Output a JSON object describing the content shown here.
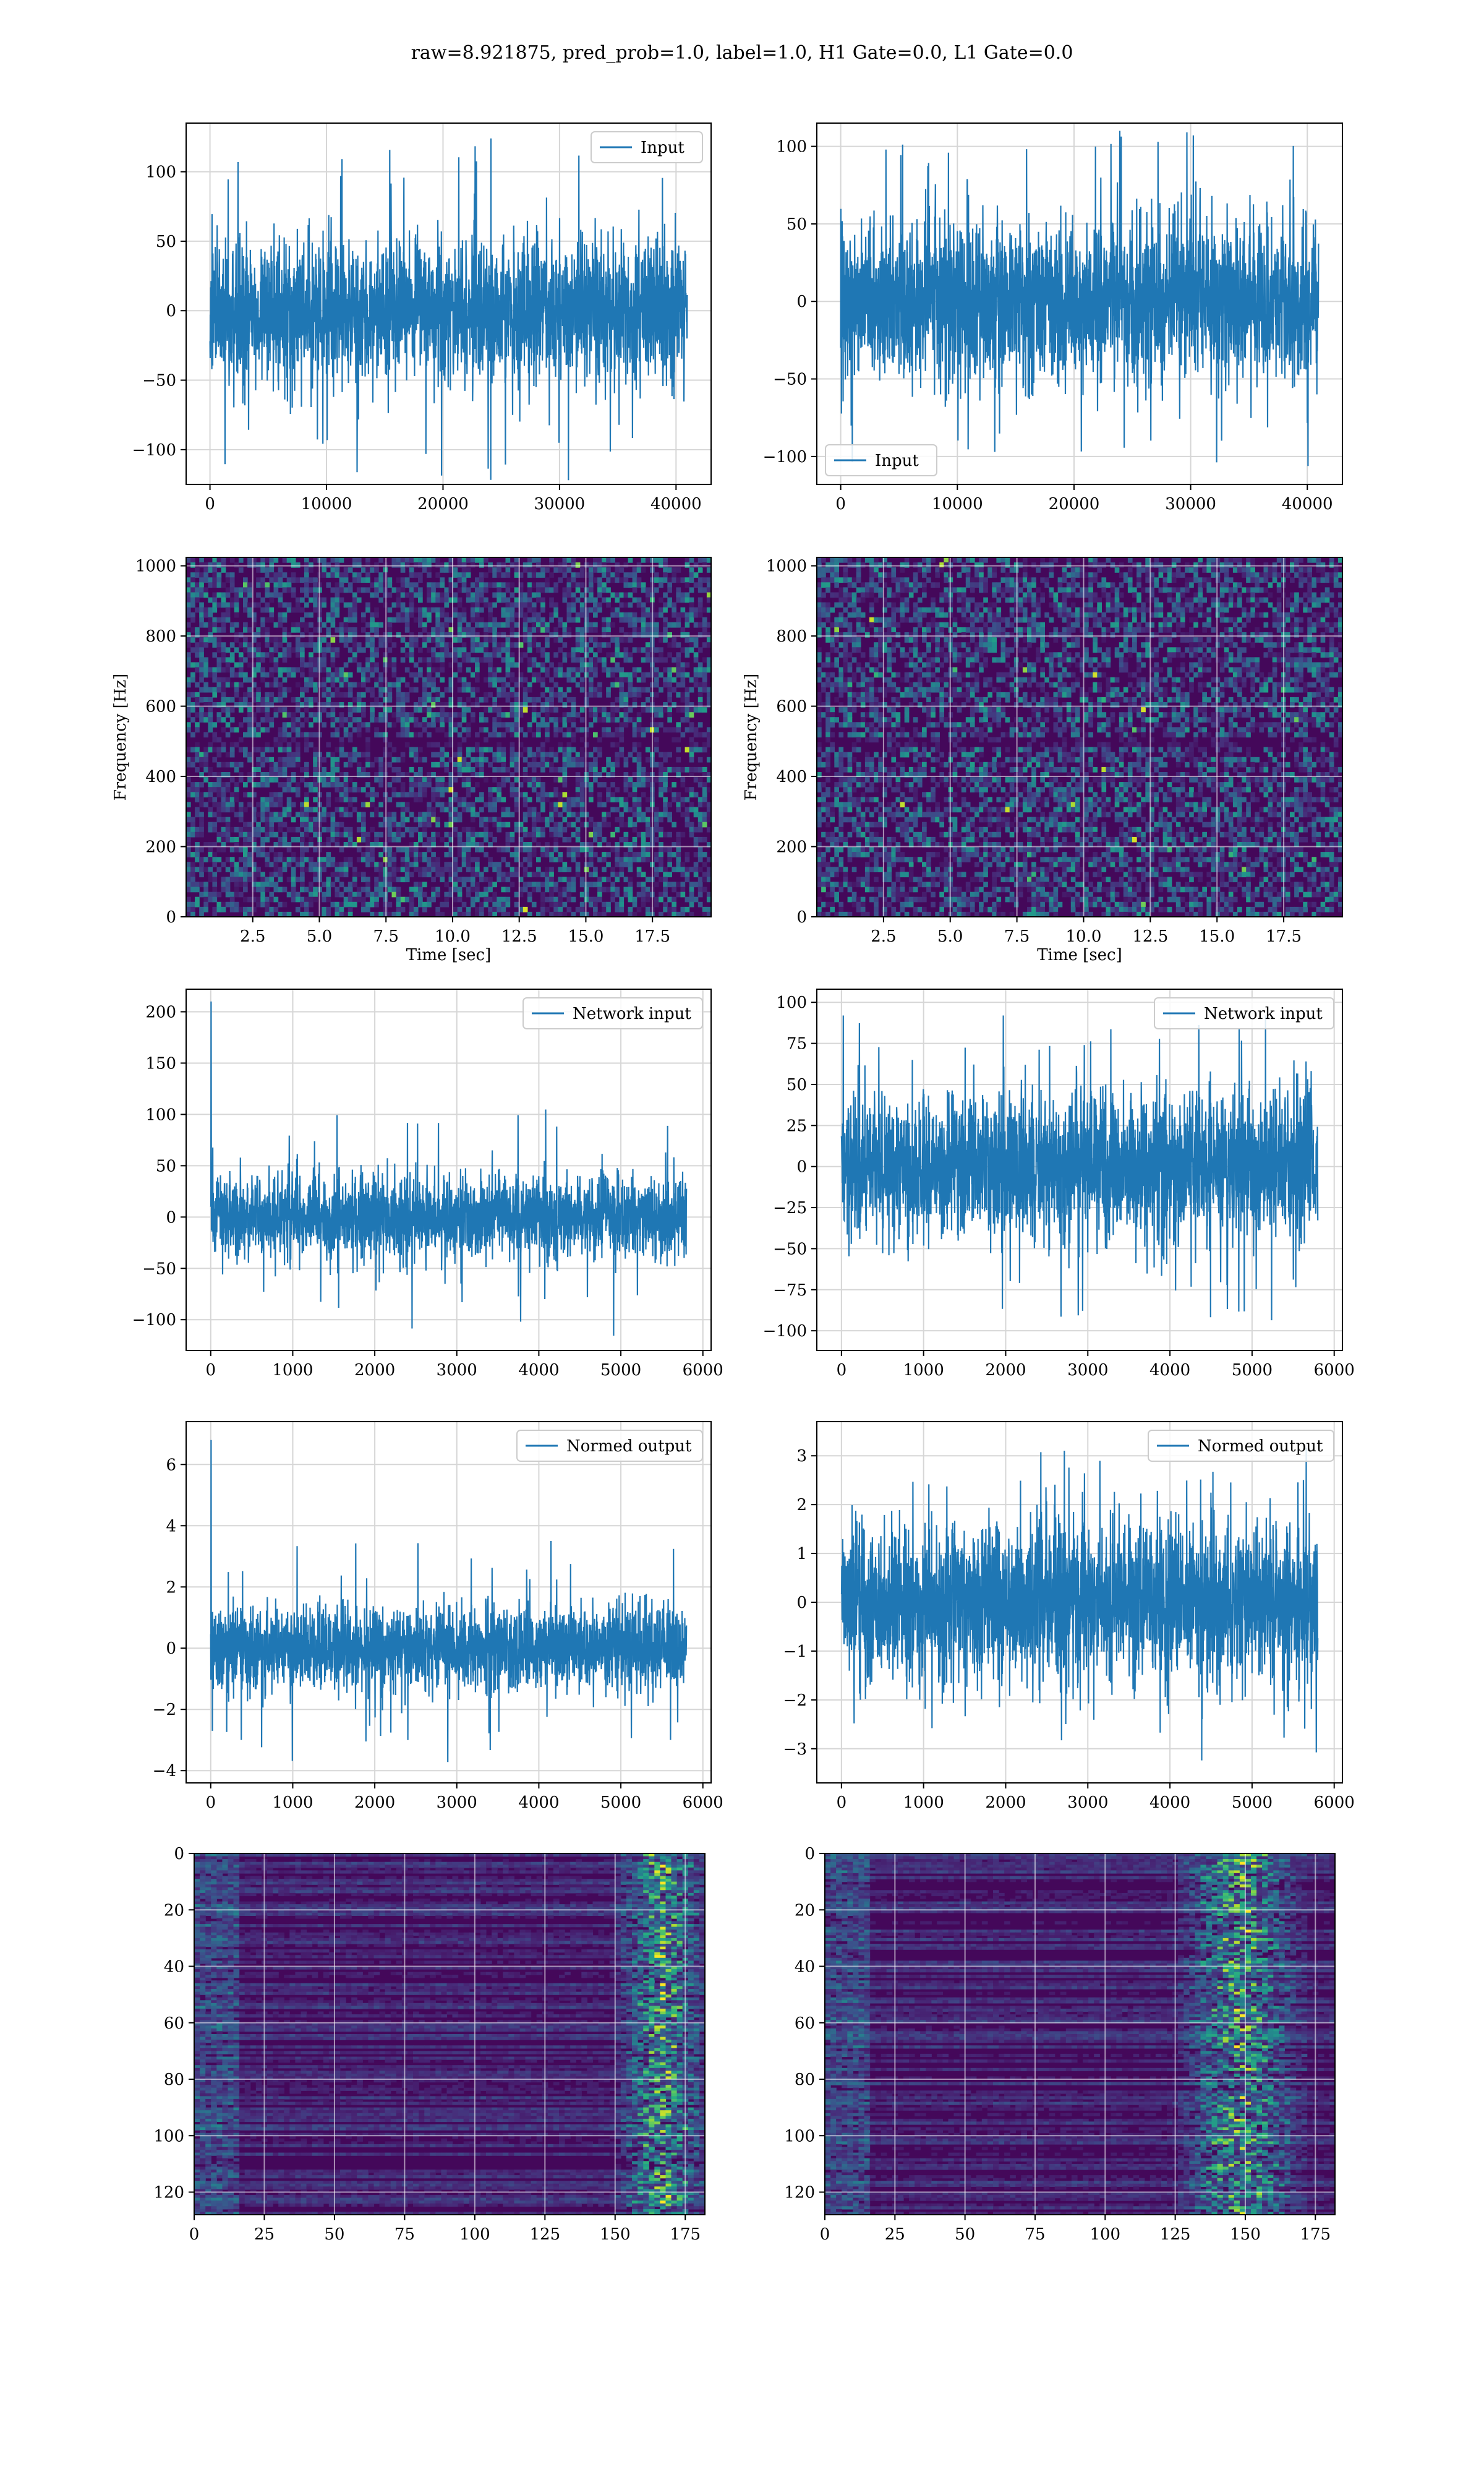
{
  "figure": {
    "suptitle": "raw=8.921875, pred_prob=1.0, label=1.0, H1 Gate=0.0, L1 Gate=0.0",
    "line_color": "#1f77b4",
    "grid_color": "#d6d6d6"
  },
  "chart_data": [
    {
      "id": "raw-left",
      "type": "line",
      "title": "",
      "xlabel": "",
      "ylabel": "",
      "xlim": [
        -2048,
        43008
      ],
      "ylim": [
        -125,
        135
      ],
      "xticks": [
        0,
        10000,
        20000,
        30000,
        40000
      ],
      "xticklabels": [
        "0",
        "10000",
        "20000",
        "30000",
        "40000"
      ],
      "yticks": [
        -100,
        -50,
        0,
        50,
        100
      ],
      "yticklabels": [
        "−100",
        "−50",
        "0",
        "50",
        "100"
      ],
      "grid": true,
      "legend": {
        "entries": [
          "Input"
        ],
        "placement": "upper right"
      },
      "series": [
        {
          "name": "Input",
          "x_range": [
            0,
            40960
          ],
          "typical_amplitude": 45,
          "peak_max": 125,
          "peak_min": -122
        }
      ]
    },
    {
      "id": "raw-right",
      "type": "line",
      "title": "",
      "xlabel": "",
      "ylabel": "",
      "xlim": [
        -2048,
        43008
      ],
      "ylim": [
        -118,
        115
      ],
      "xticks": [
        0,
        10000,
        20000,
        30000,
        40000
      ],
      "xticklabels": [
        "0",
        "10000",
        "20000",
        "30000",
        "40000"
      ],
      "yticks": [
        -100,
        -50,
        0,
        50,
        100
      ],
      "yticklabels": [
        "−100",
        "−50",
        "0",
        "50",
        "100"
      ],
      "grid": true,
      "legend": {
        "entries": [
          "Input"
        ],
        "placement": "lower left"
      },
      "series": [
        {
          "name": "Input",
          "x_range": [
            0,
            40960
          ],
          "typical_amplitude": 45,
          "peak_max": 110,
          "peak_min": -115
        }
      ]
    },
    {
      "id": "spec-left",
      "type": "heatmap",
      "title": "",
      "xlabel": "Time [sec]",
      "ylabel": "Frequency [Hz]",
      "xlim": [
        0,
        19.7
      ],
      "ylim": [
        0,
        1024
      ],
      "xticks": [
        2.5,
        5.0,
        7.5,
        10.0,
        12.5,
        15.0,
        17.5
      ],
      "xticklabels": [
        "2.5",
        "5.0",
        "7.5",
        "10.0",
        "12.5",
        "15.0",
        "17.5"
      ],
      "yticks": [
        0,
        200,
        400,
        600,
        800,
        1000
      ],
      "yticklabels": [
        "0",
        "200",
        "400",
        "600",
        "800",
        "1000"
      ],
      "grid": true,
      "colormap": "viridis"
    },
    {
      "id": "spec-right",
      "type": "heatmap",
      "title": "",
      "xlabel": "Time [sec]",
      "ylabel": "Frequency [Hz]",
      "xlim": [
        0,
        19.7
      ],
      "ylim": [
        0,
        1024
      ],
      "xticks": [
        2.5,
        5.0,
        7.5,
        10.0,
        12.5,
        15.0,
        17.5
      ],
      "xticklabels": [
        "2.5",
        "5.0",
        "7.5",
        "10.0",
        "12.5",
        "15.0",
        "17.5"
      ],
      "yticks": [
        0,
        200,
        400,
        600,
        800,
        1000
      ],
      "yticklabels": [
        "0",
        "200",
        "400",
        "600",
        "800",
        "1000"
      ],
      "grid": true,
      "colormap": "viridis"
    },
    {
      "id": "net-left",
      "type": "line",
      "title": "",
      "xlabel": "",
      "ylabel": "",
      "xlim": [
        -300,
        6100
      ],
      "ylim": [
        -130,
        222
      ],
      "xticks": [
        0,
        1000,
        2000,
        3000,
        4000,
        5000,
        6000
      ],
      "xticklabels": [
        "0",
        "1000",
        "2000",
        "3000",
        "4000",
        "5000",
        "6000"
      ],
      "yticks": [
        -100,
        -50,
        0,
        50,
        100,
        150,
        200
      ],
      "yticklabels": [
        "−100",
        "−50",
        "0",
        "50",
        "100",
        "150",
        "200"
      ],
      "grid": true,
      "legend": {
        "entries": [
          "Network input"
        ],
        "placement": "upper right"
      },
      "series": [
        {
          "name": "Network input",
          "x_range": [
            0,
            5800
          ],
          "typical_amplitude": 35,
          "spike_at_start": 210,
          "peak_max": 105,
          "peak_min": -118
        }
      ]
    },
    {
      "id": "net-right",
      "type": "line",
      "title": "",
      "xlabel": "",
      "ylabel": "",
      "xlim": [
        -300,
        6100
      ],
      "ylim": [
        -112,
        108
      ],
      "xticks": [
        0,
        1000,
        2000,
        3000,
        4000,
        5000,
        6000
      ],
      "xticklabels": [
        "0",
        "1000",
        "2000",
        "3000",
        "4000",
        "5000",
        "6000"
      ],
      "yticks": [
        -100,
        -75,
        -50,
        -25,
        0,
        25,
        50,
        75,
        100
      ],
      "yticklabels": [
        "−100",
        "−75",
        "−50",
        "−25",
        "0",
        "25",
        "50",
        "75",
        "100"
      ],
      "grid": true,
      "legend": {
        "entries": [
          "Network input"
        ],
        "placement": "upper right"
      },
      "series": [
        {
          "name": "Network input",
          "x_range": [
            0,
            5800
          ],
          "typical_amplitude": 40,
          "peak_max": 92,
          "peak_min": -100
        }
      ]
    },
    {
      "id": "norm-left",
      "type": "line",
      "title": "",
      "xlabel": "",
      "ylabel": "",
      "xlim": [
        -300,
        6100
      ],
      "ylim": [
        -4.4,
        7.4
      ],
      "xticks": [
        0,
        1000,
        2000,
        3000,
        4000,
        5000,
        6000
      ],
      "xticklabels": [
        "0",
        "1000",
        "2000",
        "3000",
        "4000",
        "5000",
        "6000"
      ],
      "yticks": [
        -4,
        -2,
        0,
        2,
        4,
        6
      ],
      "yticklabels": [
        "−4",
        "−2",
        "0",
        "2",
        "4",
        "6"
      ],
      "grid": true,
      "legend": {
        "entries": [
          "Normed output"
        ],
        "placement": "upper right"
      },
      "series": [
        {
          "name": "Normed output",
          "x_range": [
            0,
            5800
          ],
          "typical_amplitude": 1.2,
          "spike_at_start": 6.8,
          "peak_max": 3.5,
          "peak_min": -3.8
        }
      ]
    },
    {
      "id": "norm-right",
      "type": "line",
      "title": "",
      "xlabel": "",
      "ylabel": "",
      "xlim": [
        -300,
        6100
      ],
      "ylim": [
        -3.7,
        3.7
      ],
      "xticks": [
        0,
        1000,
        2000,
        3000,
        4000,
        5000,
        6000
      ],
      "xticklabels": [
        "0",
        "1000",
        "2000",
        "3000",
        "4000",
        "5000",
        "6000"
      ],
      "yticks": [
        -3,
        -2,
        -1,
        0,
        1,
        2,
        3
      ],
      "yticklabels": [
        "−3",
        "−2",
        "−1",
        "0",
        "1",
        "2",
        "3"
      ],
      "grid": true,
      "legend": {
        "entries": [
          "Normed output"
        ],
        "placement": "upper right"
      },
      "series": [
        {
          "name": "Normed output",
          "x_range": [
            0,
            5800
          ],
          "typical_amplitude": 1.4,
          "peak_max": 3.2,
          "peak_min": -3.3
        }
      ]
    },
    {
      "id": "feat-left",
      "type": "heatmap",
      "title": "",
      "xlabel": "",
      "ylabel": "",
      "xlim": [
        0,
        182
      ],
      "ylim": [
        128,
        0
      ],
      "xticks": [
        0,
        25,
        50,
        75,
        100,
        125,
        150,
        175
      ],
      "xticklabels": [
        "0",
        "25",
        "50",
        "75",
        "100",
        "125",
        "150",
        "175"
      ],
      "yticks": [
        0,
        20,
        40,
        60,
        80,
        100,
        120
      ],
      "yticklabels": [
        "0",
        "20",
        "40",
        "60",
        "80",
        "100",
        "120"
      ],
      "grid": true,
      "colormap": "viridis",
      "bright_band_columns": [
        150,
        182
      ]
    },
    {
      "id": "feat-right",
      "type": "heatmap",
      "title": "",
      "xlabel": "",
      "ylabel": "",
      "xlim": [
        0,
        182
      ],
      "ylim": [
        128,
        0
      ],
      "xticks": [
        0,
        25,
        50,
        75,
        100,
        125,
        150,
        175
      ],
      "xticklabels": [
        "0",
        "25",
        "50",
        "75",
        "100",
        "125",
        "150",
        "175"
      ],
      "yticks": [
        0,
        20,
        40,
        60,
        80,
        100,
        120
      ],
      "yticklabels": [
        "0",
        "20",
        "40",
        "60",
        "80",
        "100",
        "120"
      ],
      "grid": true,
      "colormap": "viridis",
      "bright_band_columns": [
        125,
        170
      ]
    }
  ]
}
